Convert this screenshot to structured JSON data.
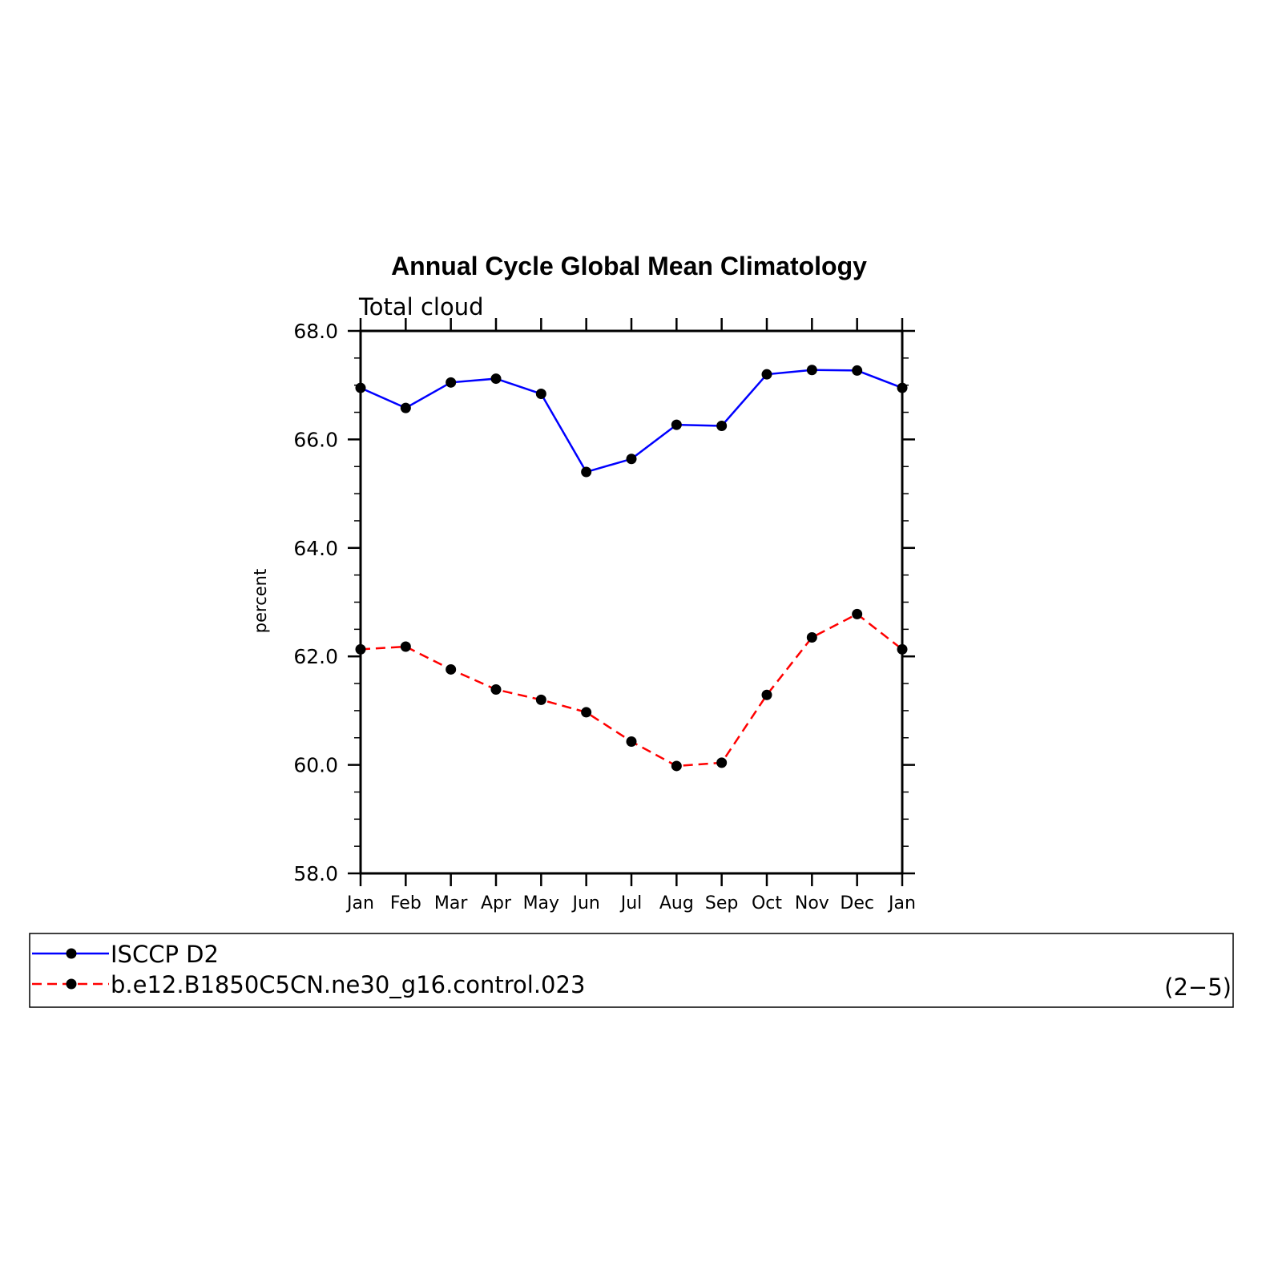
{
  "chart_data": {
    "type": "line",
    "title": "Annual Cycle Global Mean Climatology",
    "subtitle": "Total cloud",
    "ylabel": "percent",
    "xlabel": "",
    "categories": [
      "Jan",
      "Feb",
      "Mar",
      "Apr",
      "May",
      "Jun",
      "Jul",
      "Aug",
      "Sep",
      "Oct",
      "Nov",
      "Dec",
      "Jan"
    ],
    "ylim": [
      58.0,
      68.0
    ],
    "yticks": [
      "58.0",
      "60.0",
      "62.0",
      "64.0",
      "66.0",
      "68.0"
    ],
    "grid": false,
    "legend_position": "bottom",
    "series": [
      {
        "name": "ISCCP D2",
        "color": "#0000ff",
        "dash": "solid",
        "values": [
          66.95,
          66.58,
          67.05,
          67.12,
          66.84,
          65.4,
          65.64,
          66.27,
          66.25,
          67.2,
          67.28,
          67.27,
          66.95
        ]
      },
      {
        "name": "b.e12.B1850C5CN.ne30_g16.control.023",
        "color": "#ff0000",
        "dash": "dashed",
        "values": [
          62.13,
          62.18,
          61.76,
          61.39,
          61.2,
          60.97,
          60.43,
          59.98,
          60.04,
          61.29,
          62.35,
          62.78,
          62.13
        ]
      }
    ],
    "annotation": "(2−5)"
  }
}
